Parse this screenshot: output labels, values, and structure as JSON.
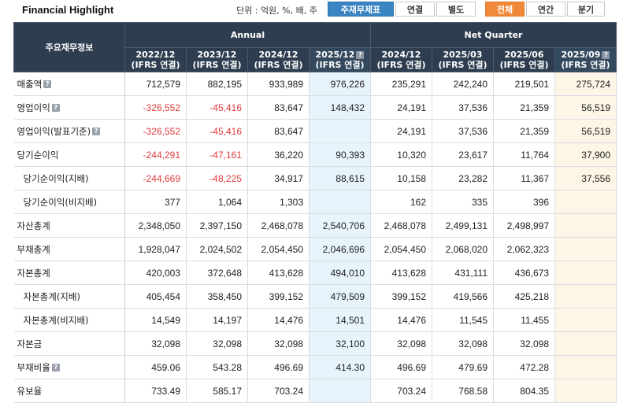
{
  "header": {
    "title": "Financial Highlight",
    "unit_label": "단위 : 억원, %, 배, 주",
    "tabs_type": [
      "주재무제표",
      "연결",
      "별도"
    ],
    "tabs_period": [
      "전체",
      "연간",
      "분기"
    ]
  },
  "table": {
    "corner_label": "주요재무정보",
    "group_annual": "Annual",
    "group_quarter": "Net Quarter",
    "columns": [
      {
        "period": "2022/12",
        "basis": "(IFRS 연결)"
      },
      {
        "period": "2023/12",
        "basis": "(IFRS 연결)"
      },
      {
        "period": "2024/12",
        "basis": "(IFRS 연결)"
      },
      {
        "period": "2025/12",
        "basis": "(IFRS 연결)"
      },
      {
        "period": "2024/12",
        "basis": "(IFRS 연결)"
      },
      {
        "period": "2025/03",
        "basis": "(IFRS 연결)"
      },
      {
        "period": "2025/06",
        "basis": "(IFRS 연결)"
      },
      {
        "period": "2025/09",
        "basis": "(IFRS 연결)"
      }
    ],
    "rows": [
      {
        "label": "매출액",
        "values": [
          "712,579",
          "882,195",
          "933,989",
          "976,226",
          "235,291",
          "242,240",
          "219,501",
          "275,724"
        ]
      },
      {
        "label": "영업이익",
        "values": [
          "-326,552",
          "-45,416",
          "83,647",
          "148,432",
          "24,191",
          "37,536",
          "21,359",
          "56,519"
        ]
      },
      {
        "label": "영업이익(발표기준)",
        "values": [
          "-326,552",
          "-45,416",
          "83,647",
          "",
          "24,191",
          "37,536",
          "21,359",
          "56,519"
        ]
      },
      {
        "label": "당기순이익",
        "values": [
          "-244,291",
          "-47,161",
          "36,220",
          "90,393",
          "10,320",
          "23,617",
          "11,764",
          "37,900"
        ]
      },
      {
        "label": "당기순이익(지배)",
        "values": [
          "-244,669",
          "-48,225",
          "34,917",
          "88,615",
          "10,158",
          "23,282",
          "11,367",
          "37,556"
        ]
      },
      {
        "label": "당기순이익(비지배)",
        "values": [
          "377",
          "1,064",
          "1,303",
          "",
          "162",
          "335",
          "396",
          ""
        ]
      },
      {
        "label": "자산총계",
        "values": [
          "2,348,050",
          "2,397,150",
          "2,468,078",
          "2,540,706",
          "2,468,078",
          "2,499,131",
          "2,498,997",
          ""
        ]
      },
      {
        "label": "부채총계",
        "values": [
          "1,928,047",
          "2,024,502",
          "2,054,450",
          "2,046,696",
          "2,054,450",
          "2,068,020",
          "2,062,323",
          ""
        ]
      },
      {
        "label": "자본총계",
        "values": [
          "420,003",
          "372,648",
          "413,628",
          "494,010",
          "413,628",
          "431,111",
          "436,673",
          ""
        ]
      },
      {
        "label": "자본총계(지배)",
        "values": [
          "405,454",
          "358,450",
          "399,152",
          "479,509",
          "399,152",
          "419,566",
          "425,218",
          ""
        ]
      },
      {
        "label": "자본총계(비지배)",
        "values": [
          "14,549",
          "14,197",
          "14,476",
          "14,501",
          "14,476",
          "11,545",
          "11,455",
          ""
        ]
      },
      {
        "label": "자본금",
        "values": [
          "32,098",
          "32,098",
          "32,098",
          "32,100",
          "32,098",
          "32,098",
          "32,098",
          ""
        ]
      },
      {
        "label": "부채비율",
        "values": [
          "459.06",
          "543.28",
          "496.69",
          "414.30",
          "496.69",
          "479.69",
          "472.28",
          ""
        ]
      },
      {
        "label": "유보율",
        "values": [
          "733.49",
          "585.17",
          "703.24",
          "",
          "703.24",
          "768.58",
          "804.35",
          ""
        ]
      }
    ]
  }
}
